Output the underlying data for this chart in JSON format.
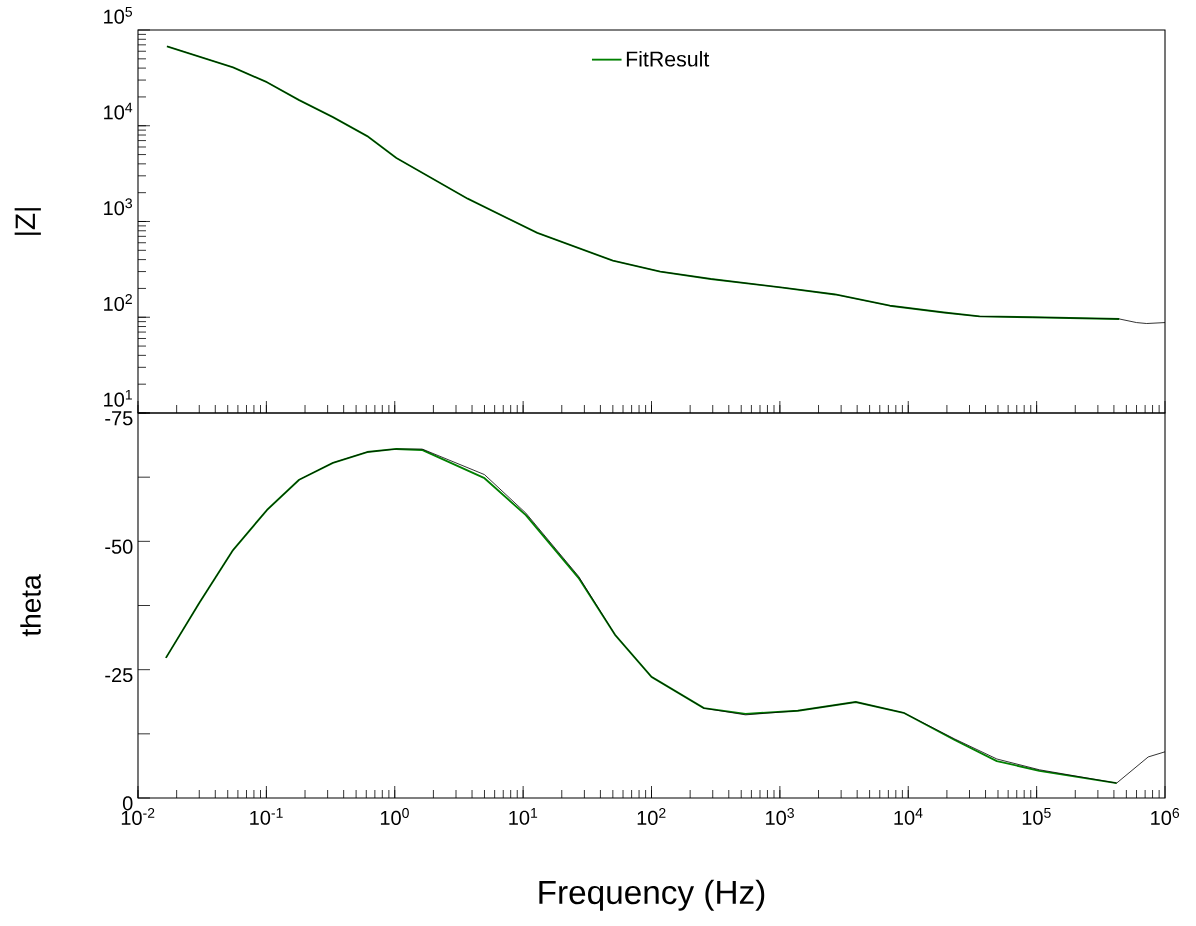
{
  "chart_data": [
    {
      "type": "line",
      "ylabel": "|Z|",
      "log": "xy",
      "legend": "top",
      "tick_labels": "y",
      "marker": "none",
      "xlim": [
        0.01,
        1000000
      ],
      "ylim": [
        10,
        100000
      ],
      "xticks": [
        {
          "value": 0.01,
          "label": null
        },
        {
          "value": 0.1,
          "label": null
        },
        {
          "value": 1,
          "label": null
        },
        {
          "value": 10,
          "label": null
        },
        {
          "value": 100,
          "label": null
        },
        {
          "value": 1000,
          "label": null
        },
        {
          "value": 10000,
          "label": null
        },
        {
          "value": 100000,
          "label": null
        },
        {
          "value": 1000000,
          "label": null
        }
      ],
      "yticks": [
        {
          "value": 10,
          "label": "10$^{1}$"
        },
        {
          "value": 100,
          "label": "10$^{2}$"
        },
        {
          "value": 1000,
          "label": "10$^{3}$"
        },
        {
          "value": 10000,
          "label": "10$^{4}$"
        },
        {
          "value": 100000,
          "label": "10$^{5}$"
        }
      ],
      "series": [
        {
          "name": "FitResult",
          "color": "#008000",
          "x": [
            0.0168,
            0.055,
            0.101,
            0.18,
            0.33,
            0.61,
            1.03,
            3.7,
            12.9,
            50,
            117,
            290,
            1050,
            2700,
            7200,
            19000,
            36000,
            93000,
            440000
          ],
          "values": [
            67600,
            40700,
            28500,
            18500,
            12300,
            7800,
            4600,
            1730,
            760,
            390,
            300,
            251,
            204,
            173,
            132,
            112,
            102,
            100,
            96
          ]
        },
        {
          "color": "#000000",
          "x": [
            0.0168,
            0.055,
            0.101,
            0.18,
            0.33,
            0.61,
            1.03,
            3.7,
            12.9,
            50,
            117,
            290,
            1050,
            2700,
            7200,
            19000,
            36000,
            93000,
            440000,
            600000,
            720000,
            1000000
          ],
          "values": [
            67600,
            40700,
            28500,
            18500,
            12300,
            7800,
            4600,
            1730,
            760,
            390,
            300,
            251,
            204,
            173,
            132,
            112,
            102,
            100,
            96,
            88,
            86,
            88
          ]
        }
      ]
    },
    {
      "type": "line",
      "xlabel": "Frequency (Hz)",
      "ylabel": "theta",
      "log": "x",
      "marker": "none",
      "xlim": [
        0.01,
        1000000
      ],
      "ylim": [
        0,
        -75
      ],
      "xticks": [
        {
          "value": 0.01,
          "label": "10$^{-2}$"
        },
        {
          "value": 0.1,
          "label": "10$^{-1}$"
        },
        {
          "value": 1,
          "label": "10$^{0}$"
        },
        {
          "value": 10,
          "label": "10$^{1}$"
        },
        {
          "value": 100,
          "label": "10$^{2}$"
        },
        {
          "value": 1000,
          "label": "10$^{3}$"
        },
        {
          "value": 10000,
          "label": "10$^{4}$"
        },
        {
          "value": 100000,
          "label": "10$^{5}$"
        },
        {
          "value": 1000000,
          "label": "10$^{6}$"
        }
      ],
      "yticks": [
        -75,
        {
          "value": -62.5,
          "label": null
        },
        -50,
        {
          "value": -37.5,
          "label": null
        },
        -25,
        {
          "value": -12.5,
          "label": null
        },
        0
      ],
      "series": [
        {
          "color": "#008000",
          "x": [
            0.0165,
            0.03,
            0.055,
            0.101,
            0.18,
            0.33,
            0.61,
            1.03,
            1.63,
            5,
            10.5,
            27,
            52,
            100,
            256,
            540,
            1380,
            3900,
            9200,
            23000,
            49000,
            105000,
            420000
          ],
          "values": [
            -27.3,
            -38,
            -48.3,
            -56.1,
            -62,
            -65.3,
            -67.4,
            -68,
            -67.8,
            -62.3,
            -55.1,
            -42.9,
            -31.8,
            -23.6,
            -17.5,
            -16.4,
            -17,
            -18.7,
            -16.6,
            -11.3,
            -7.2,
            -5.3,
            -2.9
          ]
        },
        {
          "color": "#000000",
          "x": [
            0.0165,
            0.03,
            0.055,
            0.101,
            0.18,
            0.33,
            0.61,
            1.03,
            1.63,
            5,
            10.5,
            27,
            52,
            100,
            256,
            540,
            1380,
            3900,
            9200,
            23000,
            49000,
            105000,
            420000,
            740000,
            1000000
          ],
          "values": [
            -27.3,
            -38,
            -48.3,
            -56.1,
            -62,
            -65.3,
            -67.4,
            -68,
            -68,
            -63,
            -55.5,
            -43.2,
            -31.8,
            -23.6,
            -17.5,
            -16.2,
            -17,
            -18.7,
            -16.6,
            -11.5,
            -7.6,
            -5.5,
            -2.9,
            -8,
            -9
          ]
        }
      ]
    }
  ]
}
